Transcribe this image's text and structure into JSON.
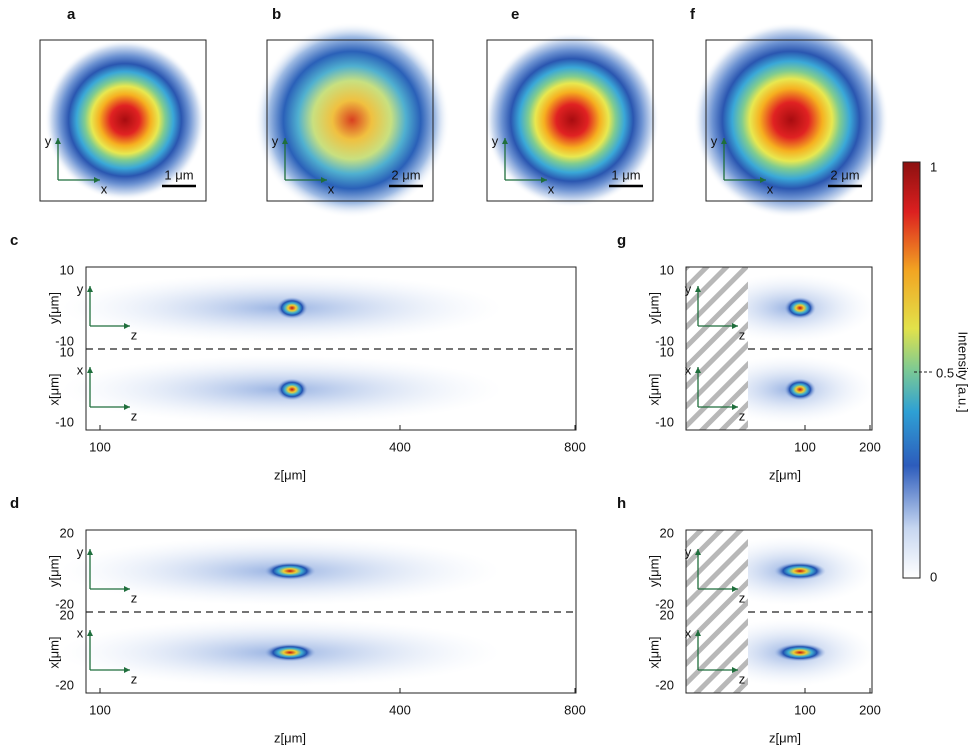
{
  "panels": {
    "a": {
      "label": "a",
      "axis_labels": [
        "y",
        "x"
      ],
      "scale_bar": "1 μm"
    },
    "b": {
      "label": "b",
      "axis_labels": [
        "y",
        "x"
      ],
      "scale_bar": "2 μm"
    },
    "e": {
      "label": "e",
      "axis_labels": [
        "y",
        "x"
      ],
      "scale_bar": "1 μm"
    },
    "f": {
      "label": "f",
      "axis_labels": [
        "y",
        "x"
      ],
      "scale_bar": "2 μm"
    },
    "c": {
      "label": "c",
      "subplots": [
        {
          "axis_labels": [
            "y",
            "z"
          ],
          "ylabel": "y[μm]",
          "yticks": [
            "10",
            "-10"
          ]
        },
        {
          "axis_labels": [
            "x",
            "z"
          ],
          "ylabel": "x[μm]",
          "yticks": [
            "10",
            "-10"
          ]
        }
      ],
      "xticks": [
        "100",
        "400",
        "800"
      ],
      "xlabel": "z[μm]"
    },
    "d": {
      "label": "d",
      "subplots": [
        {
          "axis_labels": [
            "y",
            "z"
          ],
          "ylabel": "y[μm]",
          "yticks": [
            "20",
            "-20"
          ]
        },
        {
          "axis_labels": [
            "x",
            "z"
          ],
          "ylabel": "x[μm]",
          "yticks": [
            "20",
            "-20"
          ]
        }
      ],
      "xticks": [
        "100",
        "400",
        "800"
      ],
      "xlabel": "z[μm]"
    },
    "g": {
      "label": "g",
      "subplots": [
        {
          "axis_labels": [
            "y",
            "z"
          ],
          "ylabel": "y[μm]",
          "yticks": [
            "10",
            "-10"
          ]
        },
        {
          "axis_labels": [
            "x",
            "z"
          ],
          "ylabel": "x[μm]",
          "yticks": [
            "10",
            "-10"
          ]
        }
      ],
      "xticks": [
        "100",
        "200"
      ],
      "xlabel": "z[μm]"
    },
    "h": {
      "label": "h",
      "subplots": [
        {
          "axis_labels": [
            "y",
            "z"
          ],
          "ylabel": "y[μm]",
          "yticks": [
            "20",
            "-20"
          ]
        },
        {
          "axis_labels": [
            "x",
            "z"
          ],
          "ylabel": "x[μm]",
          "yticks": [
            "20",
            "-20"
          ]
        }
      ],
      "xticks": [
        "100",
        "200"
      ],
      "xlabel": "z[μm]"
    }
  },
  "colorbar": {
    "label": "Intensity [a.u.]",
    "ticks": [
      "1",
      "0.5",
      "0"
    ]
  }
}
